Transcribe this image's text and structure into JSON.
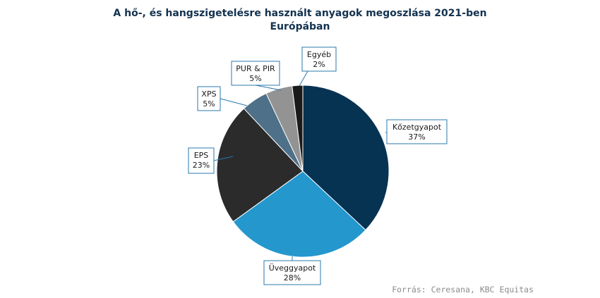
{
  "title_lines": [
    "A hő-, és hangszigetelésre használt anyagok megoszlása 2021-ben",
    "Európában"
  ],
  "source": "Forrás: Ceresana, KBC Equitas",
  "chart_data": {
    "type": "pie",
    "title": "A hő-, és hangszigetelésre használt anyagok megoszlása 2021-ben Európában",
    "slices": [
      {
        "label": "Kőzetgyapot",
        "value": 37,
        "display": "37%",
        "color": "#073353"
      },
      {
        "label": "Üveggyapot",
        "value": 28,
        "display": "28%",
        "color": "#2497cd"
      },
      {
        "label": "EPS",
        "value": 23,
        "display": "23%",
        "color": "#2b2b2b"
      },
      {
        "label": "XPS",
        "value": 5,
        "display": "5%",
        "color": "#4e7088"
      },
      {
        "label": "PUR & PIR",
        "value": 5,
        "display": "5%",
        "color": "#939393"
      },
      {
        "label": "Egyéb",
        "value": 2,
        "display": "2%",
        "color": "#1a1a1a"
      }
    ],
    "label_border_color": "#2a78ad"
  }
}
